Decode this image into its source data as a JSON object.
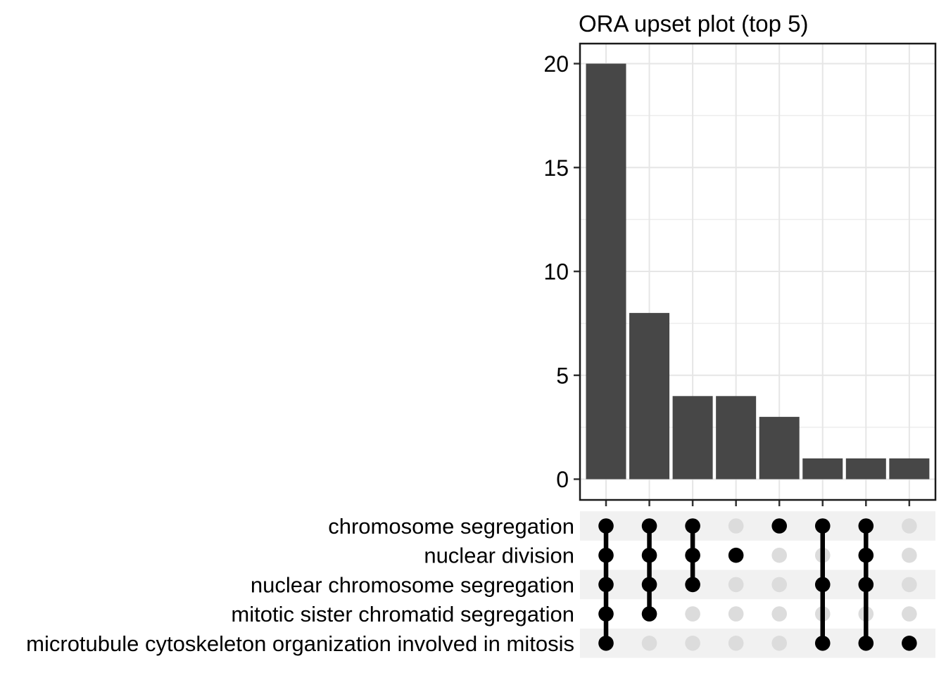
{
  "title": "ORA upset plot (top 5)",
  "chart_data": {
    "type": "bar",
    "variant": "upset",
    "title": "ORA upset plot (top 5)",
    "xlabel": "",
    "ylabel": "",
    "ylim": [
      0,
      20
    ],
    "yticks": [
      0,
      5,
      10,
      15,
      20
    ],
    "y_minor_gridlines": [
      2.5,
      7.5,
      12.5,
      17.5
    ],
    "grid": true,
    "legend": "none",
    "intersection_sizes": [
      20,
      8,
      4,
      4,
      3,
      1,
      1,
      1
    ],
    "set_labels": [
      "chromosome segregation",
      "nuclear division",
      "nuclear chromosome segregation",
      "mitotic sister chromatid segregation",
      "microtubule cytoskeleton organization involved in mitosis"
    ],
    "memberships": [
      [
        1,
        1,
        1,
        1,
        1
      ],
      [
        1,
        1,
        1,
        1,
        0
      ],
      [
        1,
        1,
        1,
        0,
        0
      ],
      [
        0,
        1,
        0,
        0,
        0
      ],
      [
        1,
        0,
        0,
        0,
        0
      ],
      [
        1,
        0,
        1,
        0,
        1
      ],
      [
        1,
        1,
        1,
        0,
        1
      ],
      [
        0,
        0,
        0,
        0,
        1
      ]
    ],
    "colors": {
      "bar": "#474747",
      "dot_active": "#000000",
      "dot_inactive": "#dcdcdc",
      "stripe": "#f1f1f1",
      "grid_major": "#e6e6e6",
      "grid_minor": "#ededed",
      "panel_border": "#1a1a1a",
      "tick": "#333333",
      "text": "#000000"
    }
  }
}
